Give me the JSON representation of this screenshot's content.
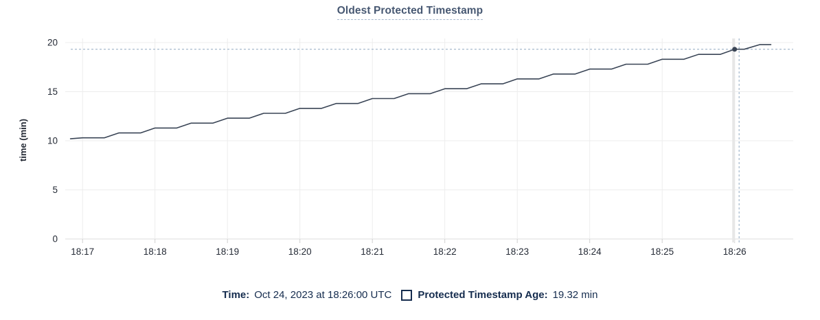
{
  "header": {
    "title": "Oldest Protected Timestamp"
  },
  "chart_data": {
    "type": "line",
    "title": "Oldest Protected Timestamp",
    "xlabel": "",
    "ylabel": "time (min)",
    "ylim": [
      0,
      20
    ],
    "grid": true,
    "legend_position": "bottom",
    "y_ticks": [
      {
        "value": 0,
        "label": "0"
      },
      {
        "value": 5,
        "label": "5"
      },
      {
        "value": 10,
        "label": "10"
      },
      {
        "value": 15,
        "label": "15"
      },
      {
        "value": 20,
        "label": "20"
      }
    ],
    "x_ticks": [
      {
        "time": "18:17:00",
        "label": "18:17"
      },
      {
        "time": "18:18:00",
        "label": "18:18"
      },
      {
        "time": "18:19:00",
        "label": "18:19"
      },
      {
        "time": "18:20:00",
        "label": "18:20"
      },
      {
        "time": "18:21:00",
        "label": "18:21"
      },
      {
        "time": "18:22:00",
        "label": "18:22"
      },
      {
        "time": "18:23:00",
        "label": "18:23"
      },
      {
        "time": "18:24:00",
        "label": "18:24"
      },
      {
        "time": "18:25:00",
        "label": "18:25"
      },
      {
        "time": "18:26:00",
        "label": "18:26"
      }
    ],
    "x_range": {
      "start": "18:16:50",
      "end": "18:26:57"
    },
    "series": [
      {
        "name": "Protected Timestamp Age",
        "unit": "min",
        "color": "#394455",
        "points": [
          [
            "18:16:50",
            10.2
          ],
          [
            "18:17:00",
            10.3
          ],
          [
            "18:17:18",
            10.3
          ],
          [
            "18:17:30",
            10.8
          ],
          [
            "18:17:48",
            10.8
          ],
          [
            "18:18:00",
            11.3
          ],
          [
            "18:18:18",
            11.3
          ],
          [
            "18:18:30",
            11.8
          ],
          [
            "18:18:48",
            11.8
          ],
          [
            "18:19:00",
            12.3
          ],
          [
            "18:19:18",
            12.3
          ],
          [
            "18:19:30",
            12.8
          ],
          [
            "18:19:48",
            12.8
          ],
          [
            "18:20:00",
            13.3
          ],
          [
            "18:20:18",
            13.3
          ],
          [
            "18:20:30",
            13.8
          ],
          [
            "18:20:48",
            13.8
          ],
          [
            "18:21:00",
            14.3
          ],
          [
            "18:21:18",
            14.3
          ],
          [
            "18:21:30",
            14.8
          ],
          [
            "18:21:48",
            14.8
          ],
          [
            "18:22:00",
            15.3
          ],
          [
            "18:22:18",
            15.3
          ],
          [
            "18:22:30",
            15.8
          ],
          [
            "18:22:48",
            15.8
          ],
          [
            "18:23:00",
            16.3
          ],
          [
            "18:23:18",
            16.3
          ],
          [
            "18:23:30",
            16.8
          ],
          [
            "18:23:48",
            16.8
          ],
          [
            "18:24:00",
            17.3
          ],
          [
            "18:24:18",
            17.3
          ],
          [
            "18:24:30",
            17.8
          ],
          [
            "18:24:48",
            17.8
          ],
          [
            "18:25:00",
            18.3
          ],
          [
            "18:25:18",
            18.3
          ],
          [
            "18:25:30",
            18.8
          ],
          [
            "18:25:48",
            18.8
          ],
          [
            "18:26:00",
            19.32
          ],
          [
            "18:26:08",
            19.32
          ],
          [
            "18:26:21",
            19.8
          ],
          [
            "18:26:30",
            19.8
          ]
        ]
      }
    ],
    "highlight": {
      "time": "18:26:00",
      "value": 19.32,
      "value_label": "19.32 min",
      "date_label": "Oct 24, 2023 at 18:26:00 UTC"
    }
  },
  "legend": {
    "time_label": "Time:",
    "time_value": "Oct 24, 2023 at 18:26:00 UTC",
    "series_label": "Protected Timestamp Age:",
    "series_value": "19.32 min"
  },
  "colors": {
    "background": "#ffffff",
    "title": "#475872",
    "title_underline": "#a6b7cc",
    "legend_text": "#152c4e",
    "series_line": "#394455",
    "marker": "#394455",
    "grid_line": "#ededed",
    "axis_baseline": "#dcdcdc",
    "axis_text": "#242a35",
    "tick_mark": "#cfcfcf",
    "dashed_guide": "#8fa7c0",
    "crosshair": "#e7e7e7"
  }
}
